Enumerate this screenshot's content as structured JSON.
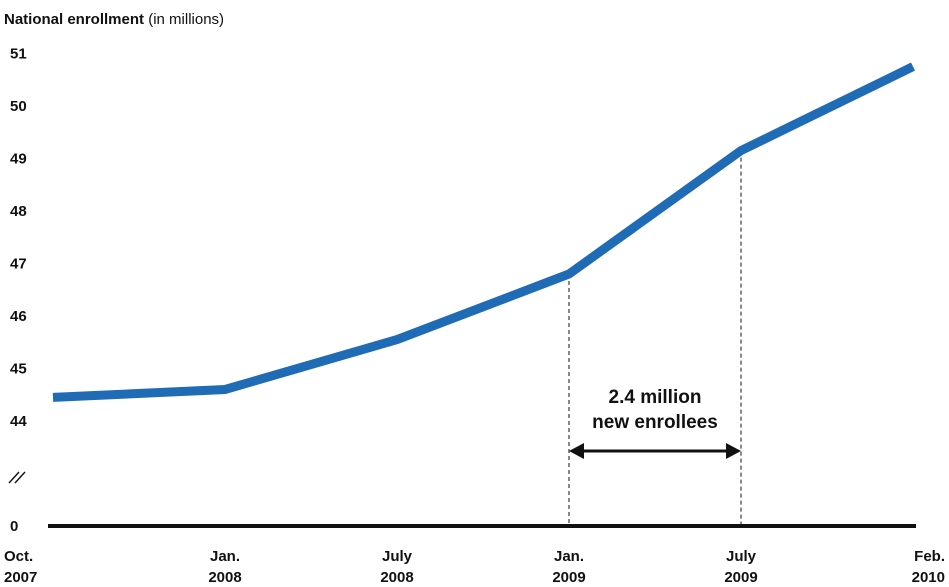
{
  "chart_data": {
    "type": "line",
    "title_bold": "National enrollment",
    "title_rest": " (in millions)",
    "xlabel": "",
    "ylabel": "",
    "y_ticks": [
      "0",
      "44",
      "45",
      "46",
      "47",
      "48",
      "49",
      "50",
      "51"
    ],
    "axis_break": true,
    "categories": [
      [
        "Oct.",
        "2007"
      ],
      [
        "Jan.",
        "2008"
      ],
      [
        "July",
        "2008"
      ],
      [
        "Jan.",
        "2009"
      ],
      [
        "July",
        "2009"
      ],
      [
        "Feb.",
        "2010"
      ]
    ],
    "series": [
      {
        "values": [
          44.45,
          44.6,
          45.55,
          46.8,
          49.15,
          50.75
        ]
      }
    ],
    "ylim": [
      44,
      51
    ],
    "grid": false,
    "colors": {
      "line": "#1f6bb5",
      "axis": "#111111",
      "annotation": "#111111"
    },
    "annotation": {
      "line1": "2.4 million",
      "line2": "new enrollees",
      "from_index": 3,
      "to_index": 4
    }
  }
}
